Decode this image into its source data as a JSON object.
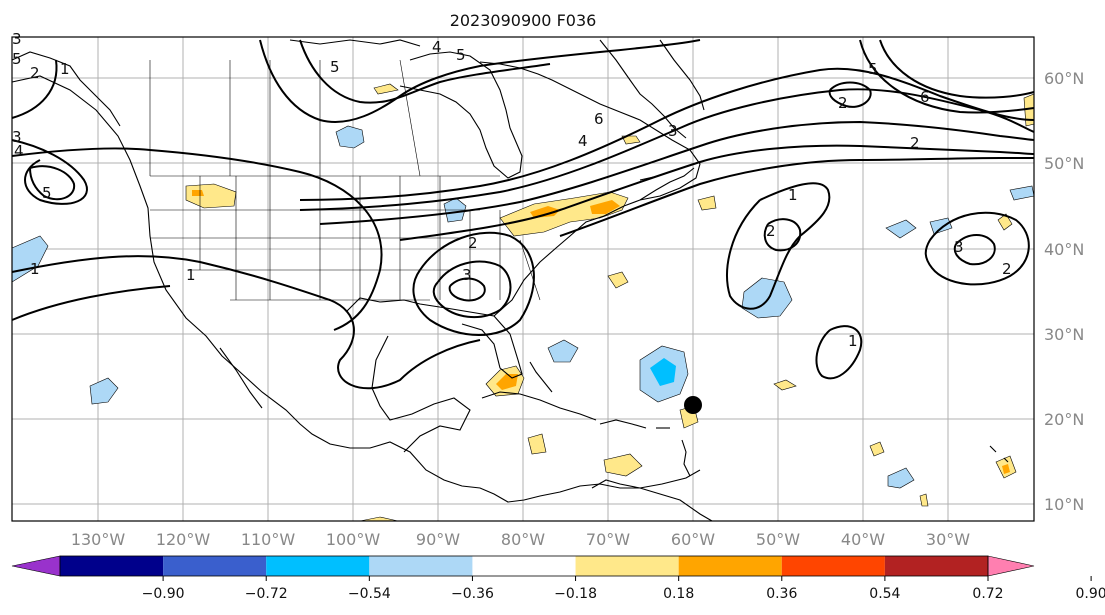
{
  "title": "2023090900 F036",
  "map": {
    "lat_labels": [
      "60°N",
      "50°N",
      "40°N",
      "30°N",
      "20°N",
      "10°N"
    ],
    "lon_labels": [
      "130°W",
      "120°W",
      "110°W",
      "100°W",
      "90°W",
      "80°W",
      "70°W",
      "60°W",
      "50°W",
      "40°W",
      "30°W"
    ],
    "contour_labels": [
      "1",
      "2",
      "3",
      "4",
      "5",
      "6"
    ],
    "marker": "storm-position-dot"
  },
  "colorbar": {
    "ticks": [
      "−0.90",
      "−0.72",
      "−0.54",
      "−0.36",
      "−0.18",
      "0.18",
      "0.36",
      "0.54",
      "0.72",
      "0.90"
    ],
    "colors": [
      "#9932cc",
      "#00008b",
      "#3a5fcd",
      "#00bfff",
      "#add8f6",
      "#ffffff",
      "#ffe88a",
      "#ffa500",
      "#ff4500",
      "#b22222",
      "#ff7fb0"
    ]
  },
  "colors": {
    "grid": "#b0b0b0",
    "coast": "#000000",
    "contour": "#000000"
  }
}
